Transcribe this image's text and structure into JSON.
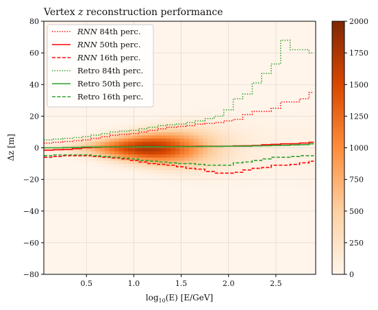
{
  "chart_data": {
    "type": "heatmap",
    "title": "Vertex z reconstruction performance",
    "title_parts": {
      "prefix": "Vertex ",
      "var": "z",
      "suffix": " reconstruction performance"
    },
    "xlabel": "log10(E) [E/GeV]",
    "xlabel_parts": {
      "a": "log",
      "sub": "10",
      "b": "(E) [E/GeV]"
    },
    "ylabel": "Δz [m]",
    "xlim": [
      0.05,
      2.92
    ],
    "ylim": [
      -80,
      80
    ],
    "xticks": [
      0.5,
      1.0,
      1.5,
      2.0,
      2.5
    ],
    "xtick_labels": [
      "0.5",
      "1.0",
      "1.5",
      "2.0",
      "2.5"
    ],
    "yticks": [
      -80,
      -60,
      -40,
      -20,
      0,
      20,
      40,
      60,
      80
    ],
    "ytick_labels": [
      "−80",
      "−60",
      "−40",
      "−20",
      "0",
      "20",
      "40",
      "60",
      "80"
    ],
    "grid": true,
    "legend_position": "top-left",
    "colorbar": {
      "range": [
        0,
        2000
      ],
      "ticks": [
        0,
        250,
        500,
        750,
        1000,
        1250,
        1500,
        1750,
        2000
      ],
      "tick_labels": [
        "0",
        "250",
        "500",
        "750",
        "1000",
        "1250",
        "1500",
        "1750",
        "2000"
      ],
      "colors": [
        "#fff5eb",
        "#fdd0a2",
        "#fd8d3c",
        "#d94801",
        "#7f2704"
      ]
    },
    "heatmap_model": {
      "peak_x": 1.15,
      "peak_count": 1700,
      "core_x_sigma": 0.42,
      "base_dz_width": 2.5,
      "dz_width_slope": 4.0
    },
    "series": [
      {
        "name": "RNN 84th perc.",
        "label_var": "RNN",
        "label_rest": " 84th perc.",
        "color": "#ff0000",
        "style": "dotted",
        "x": [
          0.05,
          0.15,
          0.25,
          0.35,
          0.45,
          0.55,
          0.65,
          0.75,
          0.85,
          0.95,
          1.05,
          1.15,
          1.25,
          1.35,
          1.45,
          1.55,
          1.65,
          1.75,
          1.85,
          1.95,
          2.05,
          2.15,
          2.25,
          2.35,
          2.45,
          2.55,
          2.65,
          2.75,
          2.85,
          2.9
        ],
        "values": [
          3,
          3.5,
          4,
          4.5,
          5,
          6,
          7,
          8,
          8.5,
          9,
          10,
          11,
          12,
          13,
          13.5,
          14,
          15,
          15.5,
          16,
          17,
          18,
          21,
          23,
          23,
          25,
          29,
          29,
          31,
          35,
          35
        ]
      },
      {
        "name": "RNN 50th perc.",
        "label_var": "RNN",
        "label_rest": " 50th perc.",
        "color": "#ff0000",
        "style": "solid",
        "x": [
          0.05,
          0.15,
          0.25,
          0.35,
          0.45,
          0.55,
          0.65,
          0.75,
          0.85,
          0.95,
          1.05,
          1.15,
          1.25,
          1.35,
          1.45,
          1.55,
          1.65,
          1.75,
          1.85,
          1.95,
          2.05,
          2.15,
          2.25,
          2.35,
          2.45,
          2.55,
          2.65,
          2.75,
          2.85,
          2.9
        ],
        "values": [
          -1.5,
          -1.2,
          -1,
          -0.5,
          0,
          0.3,
          0.5,
          0.5,
          0.5,
          0.6,
          0.6,
          0.7,
          0.8,
          0.8,
          0.9,
          0.9,
          1,
          1,
          1,
          1,
          1.2,
          1.3,
          1.5,
          2,
          2.2,
          2.5,
          2.6,
          3,
          3.5,
          3.5
        ]
      },
      {
        "name": "RNN 16th perc.",
        "label_var": "RNN",
        "label_rest": " 16th perc.",
        "color": "#ff0000",
        "style": "dashed",
        "x": [
          0.05,
          0.15,
          0.25,
          0.35,
          0.45,
          0.55,
          0.65,
          0.75,
          0.85,
          0.95,
          1.05,
          1.15,
          1.25,
          1.35,
          1.45,
          1.55,
          1.65,
          1.75,
          1.85,
          1.95,
          2.05,
          2.15,
          2.25,
          2.35,
          2.45,
          2.55,
          2.65,
          2.75,
          2.85,
          2.9
        ],
        "values": [
          -6,
          -5.5,
          -5,
          -5,
          -5,
          -5.5,
          -6,
          -6.5,
          -7,
          -8,
          -9,
          -10,
          -10.5,
          -11,
          -12,
          -13,
          -13.5,
          -15,
          -16,
          -16,
          -15.5,
          -14,
          -13,
          -12.5,
          -11,
          -11,
          -10.5,
          -9.5,
          -8.5,
          -8.5
        ]
      },
      {
        "name": "Retro 84th perc.",
        "label_var": "",
        "label_rest": "Retro 84th perc.",
        "color": "#2ca02c",
        "style": "dotted",
        "x": [
          0.05,
          0.15,
          0.25,
          0.35,
          0.45,
          0.55,
          0.65,
          0.75,
          0.85,
          0.95,
          1.05,
          1.15,
          1.25,
          1.35,
          1.45,
          1.55,
          1.65,
          1.75,
          1.85,
          1.95,
          2.05,
          2.15,
          2.25,
          2.35,
          2.45,
          2.55,
          2.65,
          2.75,
          2.85,
          2.9
        ],
        "values": [
          5,
          5.5,
          6,
          6.5,
          7,
          8,
          9,
          10,
          10.5,
          11,
          12,
          13,
          14,
          14.5,
          15,
          16,
          17,
          18.5,
          20,
          24,
          31,
          34,
          41,
          47,
          53,
          68,
          62,
          62,
          60,
          60
        ]
      },
      {
        "name": "Retro 50th perc.",
        "label_var": "",
        "label_rest": "Retro 50th perc.",
        "color": "#2ca02c",
        "style": "solid",
        "x": [
          0.05,
          0.15,
          0.25,
          0.35,
          0.45,
          0.55,
          0.65,
          0.75,
          0.85,
          0.95,
          1.05,
          1.15,
          1.25,
          1.35,
          1.45,
          1.55,
          1.65,
          1.75,
          1.85,
          1.95,
          2.05,
          2.15,
          2.25,
          2.35,
          2.45,
          2.55,
          2.65,
          2.75,
          2.85,
          2.9
        ],
        "values": [
          0,
          0,
          0.2,
          0.3,
          0.5,
          0.5,
          0.6,
          0.6,
          0.6,
          0.6,
          0.7,
          0.7,
          0.7,
          0.7,
          0.8,
          0.8,
          0.8,
          0.9,
          0.9,
          1,
          1,
          1,
          1.2,
          1.3,
          1.5,
          1.6,
          1.8,
          2,
          2.5,
          2.5
        ]
      },
      {
        "name": "Retro 16th perc.",
        "label_var": "",
        "label_rest": "Retro 16th perc.",
        "color": "#2ca02c",
        "style": "dashed",
        "x": [
          0.05,
          0.15,
          0.25,
          0.35,
          0.45,
          0.55,
          0.65,
          0.75,
          0.85,
          0.95,
          1.05,
          1.15,
          1.25,
          1.35,
          1.45,
          1.55,
          1.65,
          1.75,
          1.85,
          1.95,
          2.05,
          2.15,
          2.25,
          2.35,
          2.45,
          2.55,
          2.65,
          2.75,
          2.85,
          2.9
        ],
        "values": [
          -5,
          -4.5,
          -4.5,
          -4.5,
          -4.5,
          -5,
          -5.5,
          -6,
          -6.5,
          -7,
          -8,
          -8.5,
          -9,
          -9.5,
          -10,
          -10,
          -10.5,
          -11,
          -11,
          -11,
          -9.5,
          -9,
          -8,
          -7,
          -6,
          -6,
          -5.5,
          -5,
          -5,
          -5
        ]
      }
    ]
  }
}
